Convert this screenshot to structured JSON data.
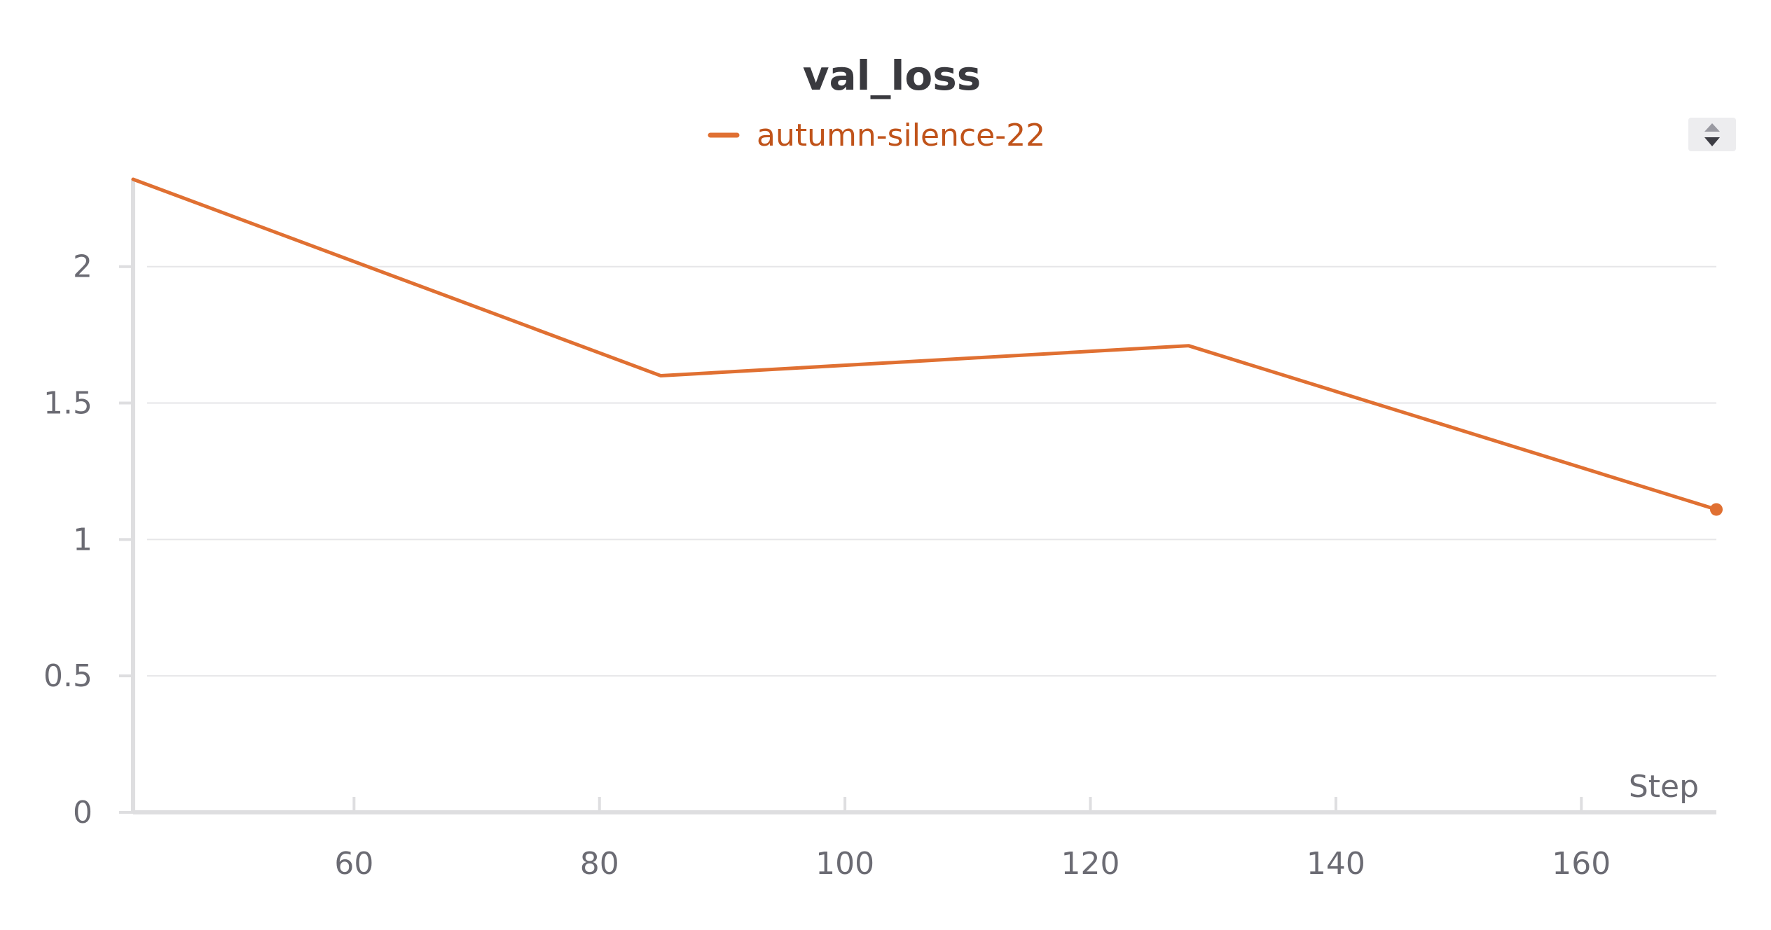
{
  "chart_data": {
    "type": "line",
    "title": "val_loss",
    "xlabel": "Step",
    "ylabel": "",
    "xlim": [
      42,
      171
    ],
    "ylim": [
      0,
      2.32
    ],
    "xticks": [
      60,
      80,
      100,
      120,
      140,
      160
    ],
    "xtick_labels": [
      "60",
      "80",
      "100",
      "120",
      "140",
      "160"
    ],
    "yticks": [
      0,
      0.5,
      1,
      1.5,
      2
    ],
    "ytick_labels": [
      "0",
      "0.5",
      "1",
      "1.5",
      "2"
    ],
    "grid": true,
    "legend_position": "top-center",
    "series": [
      {
        "name": "autumn-silence-22",
        "color": "#e07032",
        "x": [
          42,
          85,
          128,
          171
        ],
        "y": [
          2.32,
          1.6,
          1.71,
          1.11
        ]
      }
    ]
  },
  "legend": {
    "scroll_up_icon": "triangle-up-icon",
    "scroll_down_icon": "triangle-down-icon"
  }
}
